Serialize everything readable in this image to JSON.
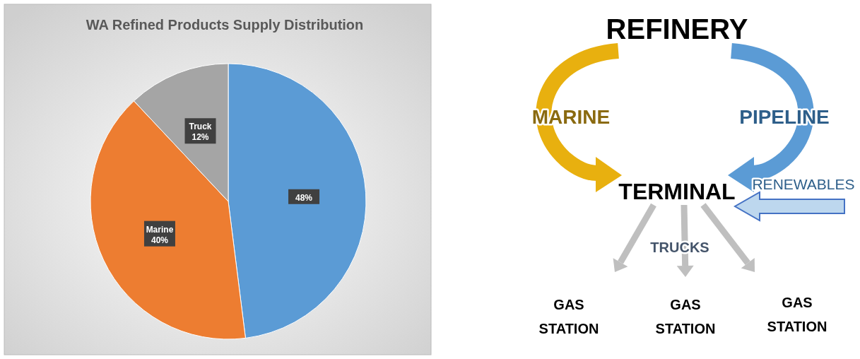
{
  "chart_data": [
    {
      "type": "pie",
      "title": "WA Refined Products Supply Distribution",
      "categories": [
        null,
        "Marine",
        "Truck"
      ],
      "values": [
        48,
        40,
        12
      ],
      "colors": [
        "#5b9bd5",
        "#ed7d31",
        "#a5a5a5"
      ],
      "value_labels": [
        "48%",
        "40%",
        "12%"
      ]
    },
    {
      "type": "other",
      "annotations": [
        "REFINERY",
        "MARINE",
        "PIPELINE",
        "TERMINAL",
        "RENEWABLES",
        "TRUCKS",
        "GAS STATION",
        "GAS STATION",
        "GAS STATION"
      ]
    }
  ]
}
